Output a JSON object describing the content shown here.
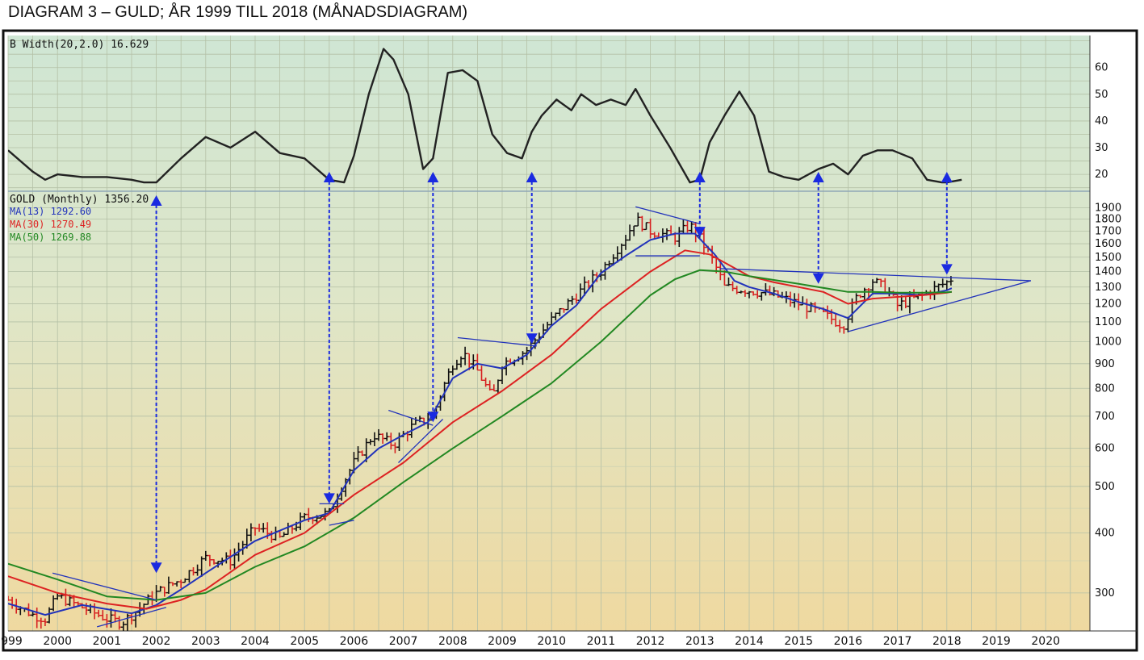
{
  "title": "DIAGRAM 3 – GULD; ÅR 1999 TILL 2018 (MÅNADSDIAGRAM)",
  "colors": {
    "bg_top": "#cfe6d4",
    "bg_bottom": "#efd9a0",
    "frame": "#111111",
    "grid": "#a9b8a0",
    "ma13": "#2233bb",
    "ma30": "#dd2222",
    "ma50": "#228822",
    "arrow": "#1a2ae0",
    "trendline": "#2233bb"
  },
  "chart_data": [
    {
      "type": "line",
      "indicator_label": "B Width(20,2.0) 16.629",
      "y_ticks": [
        20,
        30,
        40,
        50,
        60
      ],
      "ylim": [
        14,
        72
      ],
      "series": [
        {
          "x": [
            1999.0,
            1999.5,
            1999.75,
            2000.0,
            2000.5,
            2001.0,
            2001.5,
            2001.75,
            2002.0,
            2002.5,
            2003.0,
            2003.5,
            2004.0,
            2004.5,
            2005.0,
            2005.5,
            2005.8,
            2006.0,
            2006.3,
            2006.6,
            2006.8,
            2007.1,
            2007.4,
            2007.6,
            2007.9,
            2008.2,
            2008.5,
            2008.8,
            2009.1,
            2009.4,
            2009.6,
            2009.8,
            2010.1,
            2010.4,
            2010.6,
            2010.9,
            2011.2,
            2011.5,
            2011.7,
            2012.0,
            2012.4,
            2012.8,
            2013.0,
            2013.2,
            2013.5,
            2013.8,
            2014.1,
            2014.4,
            2014.7,
            2015.0,
            2015.4,
            2015.7,
            2016.0,
            2016.3,
            2016.6,
            2016.9,
            2017.3,
            2017.6,
            2017.9,
            2018.0,
            2018.3
          ],
          "values": [
            29,
            21,
            18,
            20,
            19,
            19,
            18,
            17,
            17,
            26,
            34,
            30,
            36,
            28,
            26,
            18,
            17,
            27,
            50,
            67,
            63,
            50,
            22,
            26,
            58,
            59,
            55,
            35,
            28,
            26,
            36,
            42,
            48,
            44,
            50,
            46,
            48,
            46,
            52,
            42,
            30,
            17,
            18,
            32,
            42,
            51,
            42,
            21,
            19,
            18,
            22,
            24,
            20,
            27,
            29,
            29,
            26,
            18,
            17,
            17,
            18
          ]
        }
      ]
    },
    {
      "type": "line",
      "title": "GOLD (Monthly) 1356.20",
      "y_scale": "log",
      "ylim": [
        250,
        2050
      ],
      "y_ticks": [
        300,
        400,
        500,
        600,
        700,
        800,
        900,
        1000,
        1100,
        1200,
        1300,
        1400,
        1500,
        1600,
        1700,
        1800,
        1900
      ],
      "x_ticks": [
        "1999",
        "2000",
        "2001",
        "2002",
        "2003",
        "2004",
        "2005",
        "2006",
        "2007",
        "2008",
        "2009",
        "2010",
        "2011",
        "2012",
        "2013",
        "2014",
        "2015",
        "2016",
        "2017",
        "2018",
        "2019",
        "2020"
      ],
      "xlim": [
        1999.0,
        2020.7
      ],
      "series": [
        {
          "name": "MA(13) 1292.60",
          "color": "#2233bb",
          "x": [
            1999.0,
            1999.75,
            2000.5,
            2001.5,
            2002.0,
            2002.5,
            2003.0,
            2004.0,
            2005.0,
            2005.5,
            2006.0,
            2006.5,
            2007.0,
            2007.5,
            2008.0,
            2008.5,
            2009.0,
            2009.5,
            2010.0,
            2010.5,
            2011.0,
            2011.5,
            2012.0,
            2012.5,
            2012.9,
            2013.3,
            2013.7,
            2014.0,
            2014.5,
            2015.0,
            2015.5,
            2016.0,
            2016.5,
            2017.0,
            2017.5,
            2018.0,
            2018.1
          ],
          "values": [
            285,
            270,
            283,
            272,
            283,
            305,
            330,
            385,
            425,
            440,
            540,
            600,
            640,
            680,
            840,
            900,
            880,
            940,
            1080,
            1190,
            1390,
            1510,
            1630,
            1680,
            1680,
            1520,
            1340,
            1300,
            1260,
            1210,
            1170,
            1120,
            1260,
            1260,
            1250,
            1280,
            1292.6
          ]
        },
        {
          "name": "MA(30) 1270.49",
          "color": "#dd2222",
          "x": [
            1999.0,
            2000.0,
            2001.0,
            2001.8,
            2002.5,
            2003.0,
            2004.0,
            2005.0,
            2006.0,
            2007.0,
            2008.0,
            2009.0,
            2010.0,
            2011.0,
            2012.0,
            2012.7,
            2013.2,
            2014.0,
            2014.5,
            2015.0,
            2015.5,
            2016.0,
            2016.5,
            2017.0,
            2017.5,
            2018.0,
            2018.1
          ],
          "values": [
            325,
            300,
            285,
            278,
            290,
            305,
            360,
            400,
            480,
            560,
            680,
            790,
            940,
            1170,
            1400,
            1550,
            1520,
            1370,
            1330,
            1300,
            1270,
            1200,
            1230,
            1240,
            1250,
            1265,
            1270.49
          ]
        },
        {
          "name": "MA(50) 1269.88",
          "color": "#228822",
          "x": [
            1999.0,
            2000.0,
            2001.0,
            2002.0,
            2003.0,
            2004.0,
            2005.0,
            2006.0,
            2007.0,
            2008.0,
            2009.0,
            2010.0,
            2011.0,
            2012.0,
            2012.5,
            2013.0,
            2013.5,
            2014.0,
            2015.0,
            2016.0,
            2016.5,
            2017.0,
            2017.5,
            2018.0,
            2018.1
          ],
          "values": [
            345,
            320,
            295,
            290,
            300,
            340,
            375,
            430,
            510,
            600,
            700,
            820,
            1000,
            1250,
            1350,
            1410,
            1400,
            1370,
            1320,
            1270,
            1270,
            1265,
            1265,
            1268,
            1269.88
          ]
        }
      ],
      "price_path": {
        "x": [
          1999.0,
          1999.5,
          1999.75,
          2000.0,
          2000.5,
          2001.0,
          2001.3,
          2001.6,
          2002.0,
          2002.5,
          2003.0,
          2003.5,
          2004.0,
          2004.5,
          2005.0,
          2005.5,
          2006.0,
          2006.4,
          2006.8,
          2007.2,
          2007.6,
          2008.0,
          2008.2,
          2008.5,
          2008.8,
          2009.0,
          2009.5,
          2010.0,
          2010.5,
          2011.0,
          2011.5,
          2011.7,
          2012.0,
          2012.5,
          2012.8,
          2013.0,
          2013.3,
          2013.5,
          2014.0,
          2014.5,
          2015.0,
          2015.5,
          2015.9,
          2016.2,
          2016.5,
          2016.8,
          2017.0,
          2017.5,
          2018.0,
          2018.1
        ],
        "values": [
          290,
          270,
          265,
          295,
          280,
          265,
          260,
          275,
          300,
          320,
          355,
          350,
          410,
          390,
          430,
          440,
          560,
          640,
          610,
          670,
          700,
          900,
          950,
          870,
          760,
          900,
          960,
          1110,
          1250,
          1400,
          1650,
          1800,
          1700,
          1650,
          1750,
          1640,
          1450,
          1300,
          1280,
          1250,
          1200,
          1140,
          1080,
          1250,
          1340,
          1280,
          1190,
          1250,
          1330,
          1356.2
        ]
      },
      "trendlines": [
        {
          "points": [
            [
              1999.9,
              330
            ],
            [
              2002.0,
              290
            ]
          ]
        },
        {
          "points": [
            [
              2000.8,
              255
            ],
            [
              2002.2,
              280
            ]
          ]
        },
        {
          "points": [
            [
              2005.3,
              460
            ],
            [
              2005.8,
              460
            ]
          ]
        },
        {
          "points": [
            [
              2005.5,
              415
            ],
            [
              2006.0,
              425
            ]
          ]
        },
        {
          "points": [
            [
              2006.7,
              720
            ],
            [
              2007.6,
              670
            ]
          ]
        },
        {
          "points": [
            [
              2006.9,
              560
            ],
            [
              2007.8,
              690
            ]
          ]
        },
        {
          "points": [
            [
              2008.1,
              1020
            ],
            [
              2009.7,
              980
            ]
          ]
        },
        {
          "points": [
            [
              2011.7,
              1910
            ],
            [
              2013.0,
              1760
            ]
          ]
        },
        {
          "points": [
            [
              2011.7,
              1510
            ],
            [
              2013.0,
              1510
            ]
          ]
        },
        {
          "points": [
            [
              2013.4,
              1420
            ],
            [
              2019.7,
              1340
            ]
          ]
        },
        {
          "points": [
            [
              2016.0,
              1050
            ],
            [
              2019.7,
              1340
            ]
          ]
        }
      ],
      "arrows_x": [
        2002.0,
        2005.5,
        2007.6,
        2009.6,
        2013.0,
        2015.4,
        2018.0
      ],
      "arrow_targets": [
        330,
        460,
        680,
        990,
        1650,
        1320,
        1380
      ]
    }
  ]
}
